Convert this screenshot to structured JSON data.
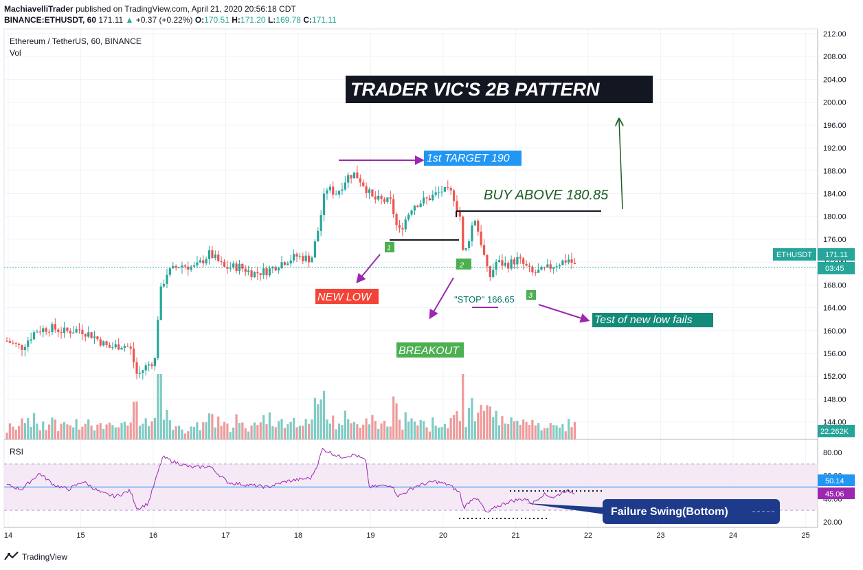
{
  "header": {
    "author": "MachiavelliTrader",
    "published_text": "published on TradingView.com, April 21, 2020 20:56:18 CDT",
    "symbol": "BINANCE:ETHUSDT, 60",
    "last": "171.11",
    "change": "+0.37 (+0.22%)",
    "o_label": "O:",
    "o": "170.51",
    "h_label": "H:",
    "h": "171.20",
    "l_label": "L:",
    "l": "169.78",
    "c_label": "C:",
    "c": "171.11"
  },
  "legend": {
    "title": "Ethereum / TetherUS, 60, BINANCE",
    "vol": "Vol",
    "rsi": "RSI"
  },
  "badges": {
    "symbol": "ETHUSDT",
    "price": "171.11",
    "countdown": "03:45",
    "volume": "22.262K",
    "rsi_ma": "50.14",
    "rsi": "45.06"
  },
  "annotations": {
    "title": "TRADER VIC'S 2B PATTERN",
    "target": "1st TARGET 190",
    "buy": "BUY ABOVE 180.85",
    "new_low": "NEW LOW",
    "stop": "\"STOP\" 166.65",
    "breakout": "BREAKOUT",
    "test": "Test of new low fails",
    "failure_swing": "Failure Swing(Bottom)",
    "marker1": "1",
    "marker2": "2",
    "marker3": "3"
  },
  "footer": {
    "brand": "TradingView"
  },
  "colors": {
    "up": "#26a69a",
    "down": "#ef5350",
    "purple": "#9c27b0",
    "blue_label": "#2196f3",
    "red_label": "#f44336",
    "green_label": "#4caf50",
    "teal_label": "#138a7a",
    "dark_green": "#1b5e20",
    "rsi_line": "#9c27b0",
    "rsi_band": "#f3e5f5",
    "navy": "#1e3a8a"
  },
  "chart_data": {
    "type": "candlestick",
    "price_axis": {
      "ticks": [
        212,
        208,
        204,
        200,
        196,
        192,
        188,
        184,
        180,
        176,
        172,
        168,
        164,
        160,
        156,
        152,
        148,
        144
      ],
      "ylim": [
        141,
        212.5
      ]
    },
    "rsi_axis": {
      "ticks": [
        80,
        60,
        40,
        20
      ],
      "ylim": [
        20,
        85
      ],
      "upper_band": 70,
      "lower_band": 30
    },
    "x_axis": {
      "ticks": [
        "14",
        "15",
        "16",
        "17",
        "18",
        "19",
        "20",
        "21",
        "22",
        "23",
        "24",
        "25"
      ]
    },
    "last_price": 171.11,
    "rsi_last": 45.06,
    "rsi_ma_last": 50.14,
    "close_path": [
      [
        14.0,
        158.2
      ],
      [
        14.2,
        157.0
      ],
      [
        14.4,
        160.0
      ],
      [
        14.6,
        160.5
      ],
      [
        14.8,
        159.8
      ],
      [
        15.0,
        160.2
      ],
      [
        15.2,
        159.0
      ],
      [
        15.4,
        157.0
      ],
      [
        15.6,
        157.5
      ],
      [
        15.7,
        157.0
      ],
      [
        15.8,
        152.0
      ],
      [
        15.9,
        153.5
      ],
      [
        16.05,
        155.0
      ],
      [
        16.1,
        166.0
      ],
      [
        16.2,
        170.0
      ],
      [
        16.4,
        171.5
      ],
      [
        16.6,
        171.0
      ],
      [
        16.8,
        173.5
      ],
      [
        17.0,
        171.0
      ],
      [
        17.2,
        171.2
      ],
      [
        17.4,
        170.0
      ],
      [
        17.6,
        170.5
      ],
      [
        17.8,
        172.0
      ],
      [
        18.0,
        173.0
      ],
      [
        18.2,
        172.5
      ],
      [
        18.3,
        178.0
      ],
      [
        18.4,
        185.0
      ],
      [
        18.55,
        184.0
      ],
      [
        18.7,
        187.0
      ],
      [
        18.8,
        187.5
      ],
      [
        18.9,
        186.0
      ],
      [
        19.05,
        183.0
      ],
      [
        19.3,
        182.5
      ],
      [
        19.4,
        177.0
      ],
      [
        19.6,
        182.0
      ],
      [
        19.8,
        183.0
      ],
      [
        20.0,
        184.5
      ],
      [
        20.15,
        184.0
      ],
      [
        20.25,
        180.0
      ],
      [
        20.3,
        172.5
      ],
      [
        20.45,
        180.0
      ],
      [
        20.55,
        175.0
      ],
      [
        20.65,
        169.0
      ],
      [
        20.75,
        172.0
      ],
      [
        20.9,
        171.5
      ],
      [
        21.05,
        172.5
      ],
      [
        21.25,
        170.0
      ],
      [
        21.4,
        170.5
      ],
      [
        21.55,
        171.5
      ],
      [
        21.75,
        172.5
      ],
      [
        21.85,
        171.1
      ]
    ],
    "rsi_path": [
      [
        14.0,
        52
      ],
      [
        14.2,
        48
      ],
      [
        14.45,
        62
      ],
      [
        14.65,
        52
      ],
      [
        14.85,
        48
      ],
      [
        15.05,
        55
      ],
      [
        15.3,
        45
      ],
      [
        15.5,
        42
      ],
      [
        15.7,
        47
      ],
      [
        15.8,
        31
      ],
      [
        15.95,
        36
      ],
      [
        16.15,
        76
      ],
      [
        16.3,
        72
      ],
      [
        16.55,
        67
      ],
      [
        16.8,
        68
      ],
      [
        17.05,
        54
      ],
      [
        17.3,
        52
      ],
      [
        17.6,
        50
      ],
      [
        17.85,
        55
      ],
      [
        18.2,
        58
      ],
      [
        18.3,
        72
      ],
      [
        18.35,
        83
      ],
      [
        18.6,
        76
      ],
      [
        18.8,
        78
      ],
      [
        18.95,
        73
      ],
      [
        19.0,
        50
      ],
      [
        19.3,
        52
      ],
      [
        19.4,
        42
      ],
      [
        19.65,
        51
      ],
      [
        19.9,
        55
      ],
      [
        20.1,
        52
      ],
      [
        20.25,
        45
      ],
      [
        20.3,
        32
      ],
      [
        20.45,
        42
      ],
      [
        20.55,
        35
      ],
      [
        20.62,
        27
      ],
      [
        20.75,
        33
      ],
      [
        20.95,
        38
      ],
      [
        21.15,
        40
      ],
      [
        21.25,
        36
      ],
      [
        21.4,
        44
      ],
      [
        21.55,
        41
      ],
      [
        21.7,
        47
      ],
      [
        21.85,
        45.06
      ]
    ],
    "rsi_ma_level": 50.14
  }
}
